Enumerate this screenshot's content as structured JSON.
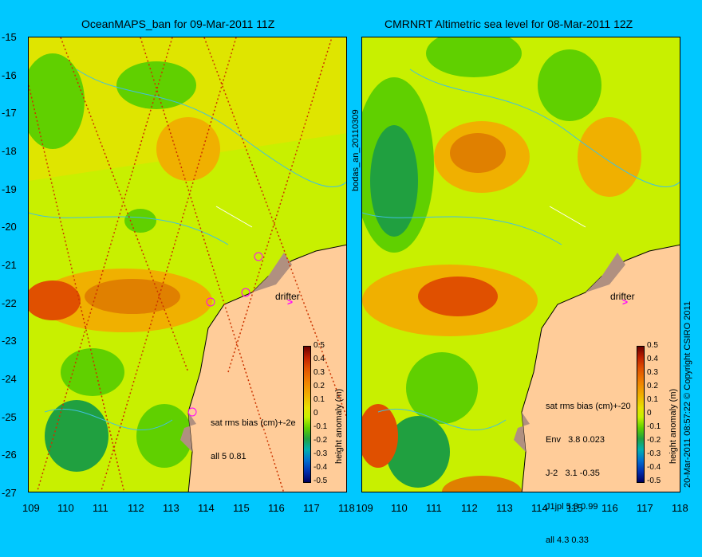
{
  "colors": {
    "background": "#00c8ff",
    "land": "#ffcc99",
    "coast_shelf": "#b09080",
    "contour": "#40c0e0",
    "drifter": "#ff00ff"
  },
  "left_panel": {
    "title": "OceanMAPS_ban for 09-Mar-2011 11Z",
    "stats": [
      "sat rms bias (cm)+-2e",
      "all 5 0.81"
    ],
    "drifter_label": "drifter"
  },
  "right_panel": {
    "title": "CMRNRT Altimetric sea level  for 08-Mar-2011 12Z",
    "stats": [
      "sat rms bias (cm)+-20",
      "Env   3.8 0.023",
      "J-2   3.1 -0.35",
      "J1jpl 5.3 0.99",
      "all 4.3 0.33"
    ],
    "drifter_label": "drifter"
  },
  "side_label": "bodas_an_20110309",
  "copyright": "20-Mar-2011 08:57:22    © Copyright CSIRO 2011",
  "map_data": {
    "lat_ticks": [
      "-15",
      "-16",
      "-17",
      "-18",
      "-19",
      "-20",
      "-21",
      "-22",
      "-23",
      "-24",
      "-25",
      "-26",
      "-27"
    ],
    "lon_ticks_left": [
      "109",
      "110",
      "111",
      "112",
      "113",
      "114",
      "115",
      "116",
      "117",
      "118"
    ],
    "lon_ticks_right": [
      "109",
      "110",
      "111",
      "112",
      "113",
      "114",
      "115",
      "116",
      "117",
      "118"
    ],
    "lat_range": [
      -27,
      -15
    ],
    "lon_range": [
      109,
      118
    ]
  },
  "colorbar": {
    "label": "height anomaly (m)",
    "ticks": [
      "0.5",
      "0.4",
      "0.3",
      "0.2",
      "0.1",
      "0",
      "-0.1",
      "-0.2",
      "-0.3",
      "-0.4",
      "-0.5"
    ],
    "range": [
      -0.5,
      0.5
    ]
  }
}
